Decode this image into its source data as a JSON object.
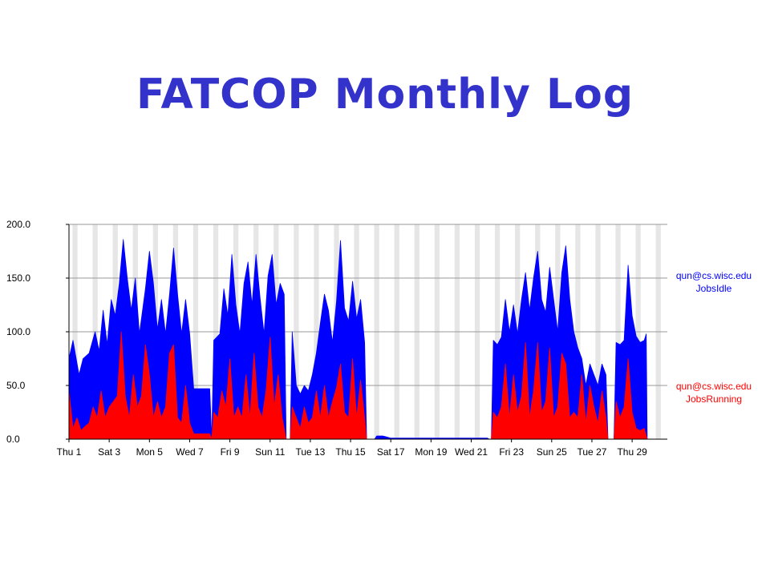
{
  "slide": {
    "title": "FATCOP Monthly Log"
  },
  "colors": {
    "title": "#3333cc",
    "jobs_idle": "#0000ff",
    "jobs_running": "#ff0000",
    "band": "#e6e6e6",
    "grid": "#9a9a9a"
  },
  "chart_data": {
    "type": "area",
    "title": "",
    "xlabel": "",
    "ylabel": "",
    "ylim": [
      0,
      200
    ],
    "y_ticks": [
      "200.0",
      "150.0",
      "100.0",
      "50.0",
      "0.0"
    ],
    "y_tick_values": [
      200,
      150,
      100,
      50,
      0
    ],
    "x_tick_labels": [
      "Thu 1",
      "Sat 3",
      "Mon 5",
      "Wed 7",
      "Fri 9",
      "Sun 11",
      "Tue 13",
      "Thu 15",
      "Sat 17",
      "Mon 19",
      "Wed 21",
      "Fri 23",
      "Sun 25",
      "Tue 27",
      "Thu 29"
    ],
    "x_tick_days": [
      1,
      3,
      5,
      7,
      9,
      11,
      13,
      15,
      17,
      19,
      21,
      23,
      25,
      27,
      29
    ],
    "xlim_days": [
      1,
      30.75
    ],
    "grid": true,
    "legend_position": "right",
    "series": [
      {
        "name": "qun@cs.wisc.edu JobsIdle",
        "label_lines": [
          "qun@cs.wisc.edu",
          "JobsIdle"
        ],
        "color": "#0000ff",
        "points": [
          [
            1.0,
            75
          ],
          [
            1.2,
            92
          ],
          [
            1.5,
            60
          ],
          [
            1.7,
            75
          ],
          [
            2.0,
            80
          ],
          [
            2.3,
            100
          ],
          [
            2.5,
            82
          ],
          [
            2.7,
            120
          ],
          [
            2.9,
            88
          ],
          [
            3.1,
            130
          ],
          [
            3.3,
            115
          ],
          [
            3.5,
            145
          ],
          [
            3.7,
            186
          ],
          [
            3.9,
            150
          ],
          [
            4.1,
            120
          ],
          [
            4.3,
            150
          ],
          [
            4.5,
            98
          ],
          [
            4.8,
            140
          ],
          [
            5.0,
            175
          ],
          [
            5.2,
            145
          ],
          [
            5.4,
            102
          ],
          [
            5.6,
            130
          ],
          [
            5.8,
            98
          ],
          [
            6.0,
            135
          ],
          [
            6.2,
            178
          ],
          [
            6.4,
            135
          ],
          [
            6.6,
            98
          ],
          [
            6.8,
            130
          ],
          [
            7.0,
            98
          ],
          [
            7.2,
            47
          ],
          [
            7.5,
            47
          ],
          [
            7.8,
            47
          ],
          [
            8.0,
            47
          ],
          [
            8.1,
            0
          ],
          [
            8.2,
            92
          ],
          [
            8.5,
            98
          ],
          [
            8.7,
            140
          ],
          [
            8.9,
            115
          ],
          [
            9.1,
            172
          ],
          [
            9.3,
            125
          ],
          [
            9.5,
            98
          ],
          [
            9.7,
            145
          ],
          [
            9.9,
            165
          ],
          [
            10.1,
            125
          ],
          [
            10.3,
            172
          ],
          [
            10.5,
            132
          ],
          [
            10.7,
            98
          ],
          [
            10.9,
            152
          ],
          [
            11.1,
            172
          ],
          [
            11.3,
            125
          ],
          [
            11.5,
            145
          ],
          [
            11.7,
            135
          ],
          [
            11.8,
            0
          ],
          [
            12.0,
            0
          ],
          [
            12.1,
            100
          ],
          [
            12.3,
            50
          ],
          [
            12.5,
            42
          ],
          [
            12.7,
            50
          ],
          [
            12.9,
            45
          ],
          [
            13.1,
            60
          ],
          [
            13.3,
            80
          ],
          [
            13.5,
            108
          ],
          [
            13.7,
            135
          ],
          [
            13.9,
            120
          ],
          [
            14.1,
            90
          ],
          [
            14.3,
            128
          ],
          [
            14.5,
            185
          ],
          [
            14.7,
            122
          ],
          [
            14.9,
            110
          ],
          [
            15.1,
            147
          ],
          [
            15.3,
            112
          ],
          [
            15.5,
            130
          ],
          [
            15.7,
            90
          ],
          [
            15.8,
            0
          ],
          [
            16.2,
            0
          ],
          [
            16.3,
            3
          ],
          [
            16.6,
            3
          ],
          [
            16.8,
            2
          ],
          [
            17.0,
            1
          ],
          [
            18.0,
            1
          ],
          [
            19.0,
            1
          ],
          [
            20.0,
            1
          ],
          [
            21.0,
            1
          ],
          [
            21.8,
            1
          ],
          [
            21.9,
            0
          ],
          [
            22.0,
            0
          ],
          [
            22.1,
            92
          ],
          [
            22.3,
            88
          ],
          [
            22.5,
            95
          ],
          [
            22.7,
            130
          ],
          [
            22.9,
            100
          ],
          [
            23.1,
            125
          ],
          [
            23.3,
            98
          ],
          [
            23.5,
            130
          ],
          [
            23.7,
            155
          ],
          [
            23.9,
            120
          ],
          [
            24.1,
            150
          ],
          [
            24.3,
            175
          ],
          [
            24.5,
            130
          ],
          [
            24.7,
            118
          ],
          [
            24.9,
            160
          ],
          [
            25.1,
            130
          ],
          [
            25.3,
            100
          ],
          [
            25.5,
            155
          ],
          [
            25.7,
            180
          ],
          [
            25.9,
            130
          ],
          [
            26.1,
            100
          ],
          [
            26.3,
            85
          ],
          [
            26.5,
            75
          ],
          [
            26.7,
            50
          ],
          [
            26.9,
            70
          ],
          [
            27.1,
            60
          ],
          [
            27.3,
            50
          ],
          [
            27.5,
            70
          ],
          [
            27.7,
            60
          ],
          [
            27.8,
            0
          ],
          [
            28.1,
            0
          ],
          [
            28.2,
            90
          ],
          [
            28.4,
            88
          ],
          [
            28.6,
            92
          ],
          [
            28.8,
            162
          ],
          [
            29.0,
            115
          ],
          [
            29.2,
            96
          ],
          [
            29.4,
            90
          ],
          [
            29.6,
            92
          ],
          [
            29.7,
            98
          ],
          [
            29.75,
            0
          ]
        ]
      },
      {
        "name": "qun@cs.wisc.edu JobsRunning",
        "label_lines": [
          "qun@cs.wisc.edu",
          "JobsRunning"
        ],
        "color": "#ff0000",
        "points": [
          [
            1.0,
            45
          ],
          [
            1.2,
            10
          ],
          [
            1.4,
            20
          ],
          [
            1.6,
            8
          ],
          [
            1.8,
            12
          ],
          [
            2.0,
            15
          ],
          [
            2.2,
            30
          ],
          [
            2.4,
            20
          ],
          [
            2.6,
            45
          ],
          [
            2.8,
            20
          ],
          [
            3.0,
            30
          ],
          [
            3.2,
            35
          ],
          [
            3.4,
            40
          ],
          [
            3.6,
            100
          ],
          [
            3.8,
            40
          ],
          [
            4.0,
            20
          ],
          [
            4.2,
            60
          ],
          [
            4.4,
            30
          ],
          [
            4.6,
            40
          ],
          [
            4.8,
            88
          ],
          [
            5.0,
            60
          ],
          [
            5.2,
            20
          ],
          [
            5.4,
            35
          ],
          [
            5.6,
            20
          ],
          [
            5.8,
            30
          ],
          [
            6.0,
            80
          ],
          [
            6.2,
            88
          ],
          [
            6.4,
            20
          ],
          [
            6.6,
            15
          ],
          [
            6.8,
            50
          ],
          [
            7.0,
            15
          ],
          [
            7.2,
            5
          ],
          [
            7.5,
            5
          ],
          [
            7.8,
            5
          ],
          [
            8.0,
            5
          ],
          [
            8.1,
            0
          ],
          [
            8.2,
            25
          ],
          [
            8.4,
            20
          ],
          [
            8.6,
            45
          ],
          [
            8.8,
            30
          ],
          [
            9.0,
            75
          ],
          [
            9.2,
            20
          ],
          [
            9.4,
            30
          ],
          [
            9.6,
            20
          ],
          [
            9.8,
            60
          ],
          [
            10.0,
            20
          ],
          [
            10.2,
            80
          ],
          [
            10.4,
            30
          ],
          [
            10.6,
            20
          ],
          [
            10.8,
            45
          ],
          [
            11.0,
            95
          ],
          [
            11.2,
            30
          ],
          [
            11.4,
            60
          ],
          [
            11.6,
            20
          ],
          [
            11.8,
            0
          ],
          [
            12.0,
            0
          ],
          [
            12.1,
            30
          ],
          [
            12.3,
            20
          ],
          [
            12.5,
            10
          ],
          [
            12.7,
            30
          ],
          [
            12.9,
            15
          ],
          [
            13.1,
            20
          ],
          [
            13.3,
            45
          ],
          [
            13.5,
            20
          ],
          [
            13.7,
            50
          ],
          [
            13.9,
            20
          ],
          [
            14.1,
            35
          ],
          [
            14.3,
            48
          ],
          [
            14.5,
            70
          ],
          [
            14.7,
            25
          ],
          [
            14.9,
            20
          ],
          [
            15.1,
            75
          ],
          [
            15.3,
            20
          ],
          [
            15.5,
            55
          ],
          [
            15.7,
            20
          ],
          [
            15.8,
            0
          ],
          [
            22.0,
            0
          ],
          [
            22.1,
            25
          ],
          [
            22.3,
            20
          ],
          [
            22.5,
            30
          ],
          [
            22.7,
            70
          ],
          [
            22.9,
            20
          ],
          [
            23.1,
            60
          ],
          [
            23.3,
            25
          ],
          [
            23.5,
            40
          ],
          [
            23.7,
            90
          ],
          [
            23.9,
            20
          ],
          [
            24.1,
            45
          ],
          [
            24.3,
            90
          ],
          [
            24.5,
            25
          ],
          [
            24.7,
            35
          ],
          [
            24.9,
            85
          ],
          [
            25.1,
            20
          ],
          [
            25.3,
            30
          ],
          [
            25.5,
            80
          ],
          [
            25.7,
            70
          ],
          [
            25.9,
            20
          ],
          [
            26.1,
            25
          ],
          [
            26.3,
            20
          ],
          [
            26.5,
            60
          ],
          [
            26.7,
            15
          ],
          [
            26.9,
            50
          ],
          [
            27.1,
            30
          ],
          [
            27.3,
            15
          ],
          [
            27.5,
            45
          ],
          [
            27.7,
            20
          ],
          [
            27.8,
            0
          ],
          [
            28.1,
            0
          ],
          [
            28.2,
            35
          ],
          [
            28.4,
            20
          ],
          [
            28.6,
            30
          ],
          [
            28.8,
            75
          ],
          [
            29.0,
            25
          ],
          [
            29.2,
            10
          ],
          [
            29.4,
            8
          ],
          [
            29.6,
            10
          ],
          [
            29.75,
            0
          ]
        ]
      }
    ]
  }
}
